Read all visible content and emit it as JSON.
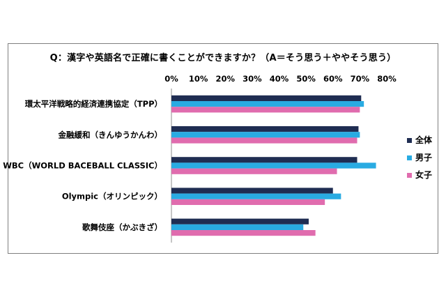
{
  "chart_data": {
    "type": "bar",
    "orientation": "horizontal",
    "title": "Q：漢字や英語名で正確に書くことができますか？（A＝そう思う＋ややそう思う）",
    "xlim": [
      0,
      80
    ],
    "tick_values": [
      0,
      10,
      20,
      30,
      40,
      50,
      60,
      70,
      80
    ],
    "tick_labels": [
      "0%",
      "10%",
      "20%",
      "30%",
      "40%",
      "50%",
      "60%",
      "70%",
      "80%"
    ],
    "categories": [
      "環太平洋戦略的経済連携協定（TPP）",
      "金融緩和（きんゆうかんわ）",
      "WBC（WORLD BACEBALL CLASSIC）",
      "Olympic（オリンピック）",
      "歌舞伎座（かぶきざ）"
    ],
    "series": [
      {
        "name": "全体",
        "color": "#1f2d52",
        "values": [
          70.5,
          69.5,
          69,
          60,
          51
        ]
      },
      {
        "name": "男子",
        "color": "#29abe2",
        "values": [
          71.5,
          70,
          76,
          63,
          49
        ]
      },
      {
        "name": "女子",
        "color": "#e06cae",
        "values": [
          70,
          69,
          61.5,
          57,
          53.5
        ]
      }
    ],
    "legend_position": "right",
    "grid": false
  }
}
